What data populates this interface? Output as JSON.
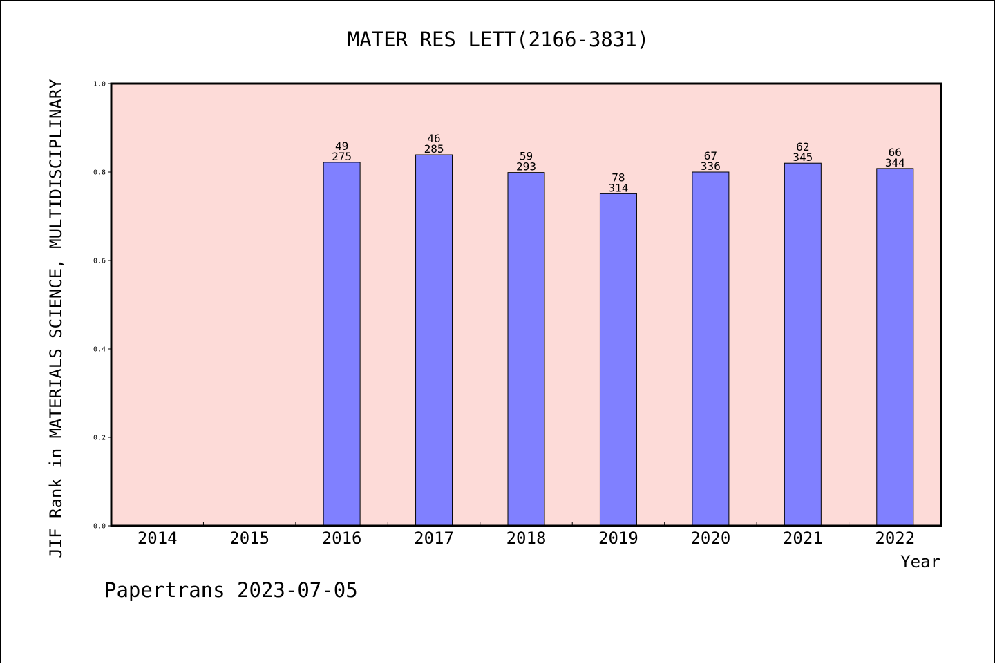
{
  "chart_data": {
    "type": "bar",
    "title": "MATER RES LETT(2166-3831)",
    "xlabel": "Year",
    "ylabel": "JIF Rank in MATERIALS SCIENCE, MULTIDISCIPLINARY",
    "ylim": [
      0.0,
      1.0
    ],
    "yticks": [
      "0.0",
      "0.2",
      "0.4",
      "0.6",
      "0.8",
      "1.0"
    ],
    "grid": false,
    "categories": [
      "2014",
      "2015",
      "2016",
      "2017",
      "2018",
      "2019",
      "2020",
      "2021",
      "2022"
    ],
    "values": [
      null,
      null,
      0.822,
      0.839,
      0.799,
      0.751,
      0.8,
      0.82,
      0.808
    ],
    "data_labels": [
      null,
      null,
      {
        "rank": "49",
        "total": "275"
      },
      {
        "rank": "46",
        "total": "285"
      },
      {
        "rank": "59",
        "total": "293"
      },
      {
        "rank": "78",
        "total": "314"
      },
      {
        "rank": "67",
        "total": "336"
      },
      {
        "rank": "62",
        "total": "345"
      },
      {
        "rank": "66",
        "total": "344"
      }
    ],
    "footer": "Papertrans 2023-07-05",
    "colors": {
      "plot_background": "#fddbd8",
      "bar_fill": "#8080ff",
      "bar_stroke": "#000000",
      "axis": "#000000"
    }
  }
}
